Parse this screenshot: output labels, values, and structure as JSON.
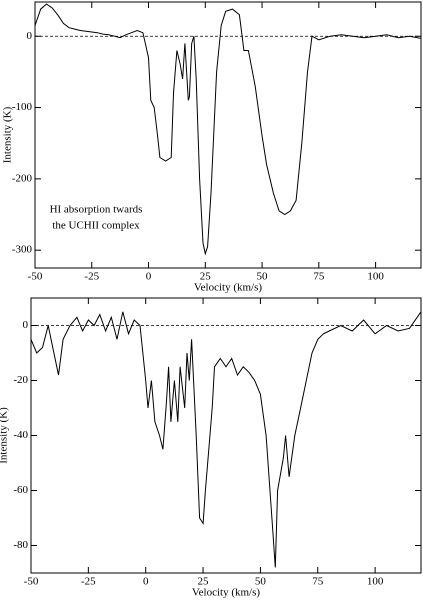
{
  "chart_data": [
    {
      "type": "line",
      "xlabel": "Velocity (km/s)",
      "ylabel": "Intensity (K)",
      "annotation": [
        "HI absorption twards",
        "the UCHII complex"
      ],
      "xlim": [
        -50,
        120
      ],
      "ylim": [
        -325,
        48
      ],
      "xticks": [
        -50,
        -25,
        0,
        25,
        50,
        75,
        100
      ],
      "yticks": [
        -300,
        -200,
        -100,
        0
      ],
      "hline": 0,
      "series": [
        {
          "color": "#000000",
          "x": [
            -50,
            -47.5,
            -45,
            -42.5,
            -40,
            -37.5,
            -35,
            -32.5,
            -30,
            -27.5,
            -25,
            -22.5,
            -20,
            -17.5,
            -15,
            -12.5,
            -10,
            -7.5,
            -5,
            -2.5,
            0,
            1,
            2.5,
            4,
            5,
            7.5,
            10,
            11,
            12.5,
            14,
            15,
            16,
            17.5,
            18,
            19,
            20,
            21,
            22.5,
            24,
            25,
            26,
            27.5,
            30,
            32,
            34,
            37,
            40,
            42,
            44,
            47,
            50,
            52,
            55,
            57.5,
            60,
            62.5,
            65,
            67.5,
            70,
            72,
            75,
            80,
            85,
            90,
            95,
            100,
            105,
            110,
            115,
            120
          ],
          "values": [
            15,
            38,
            45,
            40,
            30,
            18,
            12,
            10,
            8,
            7,
            6,
            5,
            3,
            2,
            0,
            -2,
            2,
            5,
            8,
            5,
            -30,
            -90,
            -100,
            -140,
            -170,
            -175,
            -170,
            -80,
            -20,
            -40,
            -60,
            -10,
            -90,
            -85,
            -10,
            0,
            -60,
            -200,
            -290,
            -305,
            -295,
            -220,
            -50,
            15,
            35,
            38,
            30,
            -20,
            -20,
            -70,
            -140,
            -180,
            -220,
            -245,
            -250,
            -245,
            -230,
            -150,
            -50,
            0,
            -5,
            0,
            2,
            0,
            -2,
            0,
            2,
            -2,
            0,
            -3
          ]
        }
      ]
    },
    {
      "type": "line",
      "xlabel": "Velocity (km/s)",
      "ylabel": "Intensity (K)",
      "xlim": [
        -50,
        120
      ],
      "ylim": [
        -90,
        10
      ],
      "xticks": [
        -50,
        -25,
        0,
        25,
        50,
        75,
        100
      ],
      "yticks": [
        -80,
        -60,
        -40,
        -20,
        0
      ],
      "hline": 0,
      "series": [
        {
          "color": "#000000",
          "x": [
            -50,
            -47.5,
            -45,
            -42.5,
            -40,
            -38,
            -36,
            -33,
            -30,
            -27.5,
            -25,
            -22.5,
            -20,
            -17.5,
            -15,
            -12.5,
            -10,
            -7.5,
            -5,
            -2.5,
            0,
            1,
            2.5,
            4,
            6,
            7.5,
            9,
            10,
            11,
            12.5,
            14,
            15,
            17,
            18,
            19,
            20,
            22,
            23.5,
            25,
            26,
            27.5,
            29,
            30,
            32.5,
            35,
            37.5,
            40,
            42.5,
            45,
            47.5,
            50,
            52.5,
            55,
            56.5,
            57.5,
            60,
            61,
            62.5,
            65,
            67.5,
            70,
            72.5,
            75,
            77.5,
            80,
            85,
            90,
            95,
            100,
            105,
            110,
            115,
            120
          ],
          "values": [
            -5,
            -10,
            -8,
            0,
            -10,
            -18,
            -5,
            0,
            3,
            -2,
            2,
            0,
            4,
            -2,
            3,
            -5,
            5,
            -3,
            2,
            0,
            -20,
            -30,
            -20,
            -35,
            -40,
            -45,
            -28,
            -15,
            -35,
            -20,
            -35,
            -15,
            -30,
            -10,
            -20,
            -5,
            -40,
            -70,
            -72,
            -60,
            -45,
            -30,
            -15,
            -12,
            -15,
            -12,
            -18,
            -15,
            -17,
            -20,
            -25,
            -40,
            -70,
            -88,
            -60,
            -48,
            -40,
            -55,
            -40,
            -30,
            -20,
            -10,
            -5,
            -3,
            -2,
            0,
            -2,
            2,
            -3,
            0,
            -2,
            -1,
            5
          ]
        }
      ]
    }
  ]
}
